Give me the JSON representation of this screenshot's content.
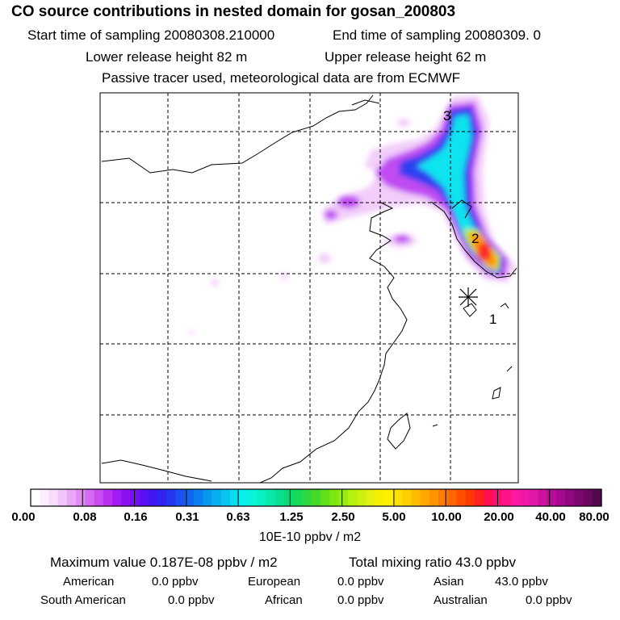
{
  "header": {
    "title": "CO  source contributions in nested domain for gosan_200803",
    "start_label": "Start time of sampling 20080308.210000",
    "end_label": "End time of sampling 20080309.     0",
    "lower_height": "Lower release height   82 m",
    "upper_height": "Upper release height   62 m",
    "tracer_note": "Passive tracer used, meteorological data are from ECMWF"
  },
  "map": {
    "markers": [
      "1",
      "2",
      "3"
    ]
  },
  "colorbar": {
    "ticks": [
      "0.00",
      "0.08",
      "0.16",
      "0.31",
      "0.63",
      "1.25",
      "2.50",
      "5.00",
      "10.00",
      "20.00",
      "40.00",
      "80.00"
    ],
    "unit": "10E-10 ppbv / m2",
    "colors": [
      "#ffffff",
      "#fbeefe",
      "#f6ddfc",
      "#f0c6fa",
      "#e8a8f7",
      "#e08af4",
      "#d56bf2",
      "#c94cf0",
      "#b930f0",
      "#a21cf2",
      "#8a12f2",
      "#7410f2",
      "#5a10f2",
      "#4018f2",
      "#3024f0",
      "#2438f0",
      "#1c52f2",
      "#1068f0",
      "#0a80ee",
      "#0898ee",
      "#08aeef",
      "#08c4ef",
      "#08dcef",
      "#08f0ee",
      "#08f4d8",
      "#08f0c0",
      "#08e8a8",
      "#08e090",
      "#08d878",
      "#18d858",
      "#30d840",
      "#48d828",
      "#60e018",
      "#7ce810",
      "#98ec10",
      "#b4f010",
      "#ccf010",
      "#e4f010",
      "#f8f000",
      "#fff000",
      "#ffe000",
      "#ffd000",
      "#ffbc00",
      "#ffa800",
      "#ff9400",
      "#ff7c00",
      "#ff6600",
      "#ff5000",
      "#ff3800",
      "#ff2020",
      "#ff1050",
      "#ff1070",
      "#ff1488",
      "#ff18a0",
      "#f018a8",
      "#e018a8",
      "#cc10a0",
      "#b80c98",
      "#a40890",
      "#900880",
      "#7c0870",
      "#680860",
      "#540850"
    ]
  },
  "footer": {
    "max_value": "Maximum value  0.187E-08 ppbv / m2",
    "total_mixing": "Total mixing ratio       43.0 ppbv",
    "american_label": "American",
    "american_value": "0.0 ppbv",
    "european_label": "European",
    "european_value": "0.0 ppbv",
    "asian_label": "Asian",
    "asian_value": "43.0 ppbv",
    "south_american_label": "South American",
    "south_american_value": "0.0 ppbv",
    "african_label": "African",
    "african_value": "0.0 ppbv",
    "australian_label": "Australian",
    "australian_value": "0.0 ppbv"
  }
}
